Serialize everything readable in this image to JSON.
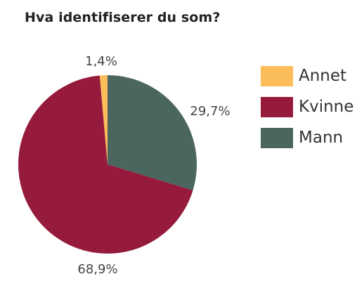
{
  "chart_data": {
    "type": "pie",
    "title": "Hva identifiserer du som?",
    "categories": [
      "Annet",
      "Kvinne",
      "Mann"
    ],
    "values": [
      1.4,
      68.9,
      29.7
    ],
    "labels": [
      "1,4%",
      "68,9%",
      "29,7%"
    ],
    "colors": [
      "#FBBD5A",
      "#951A3C",
      "#4B665E"
    ],
    "start_angle_deg": 0,
    "direction": "clockwise",
    "order": [
      "Mann",
      "Kvinne",
      "Annet"
    ],
    "legend": {
      "position": "right",
      "items": [
        {
          "label": "Annet",
          "color": "#FBBD5A"
        },
        {
          "label": "Kvinne",
          "color": "#951A3C"
        },
        {
          "label": "Mann",
          "color": "#4B665E"
        }
      ]
    }
  }
}
